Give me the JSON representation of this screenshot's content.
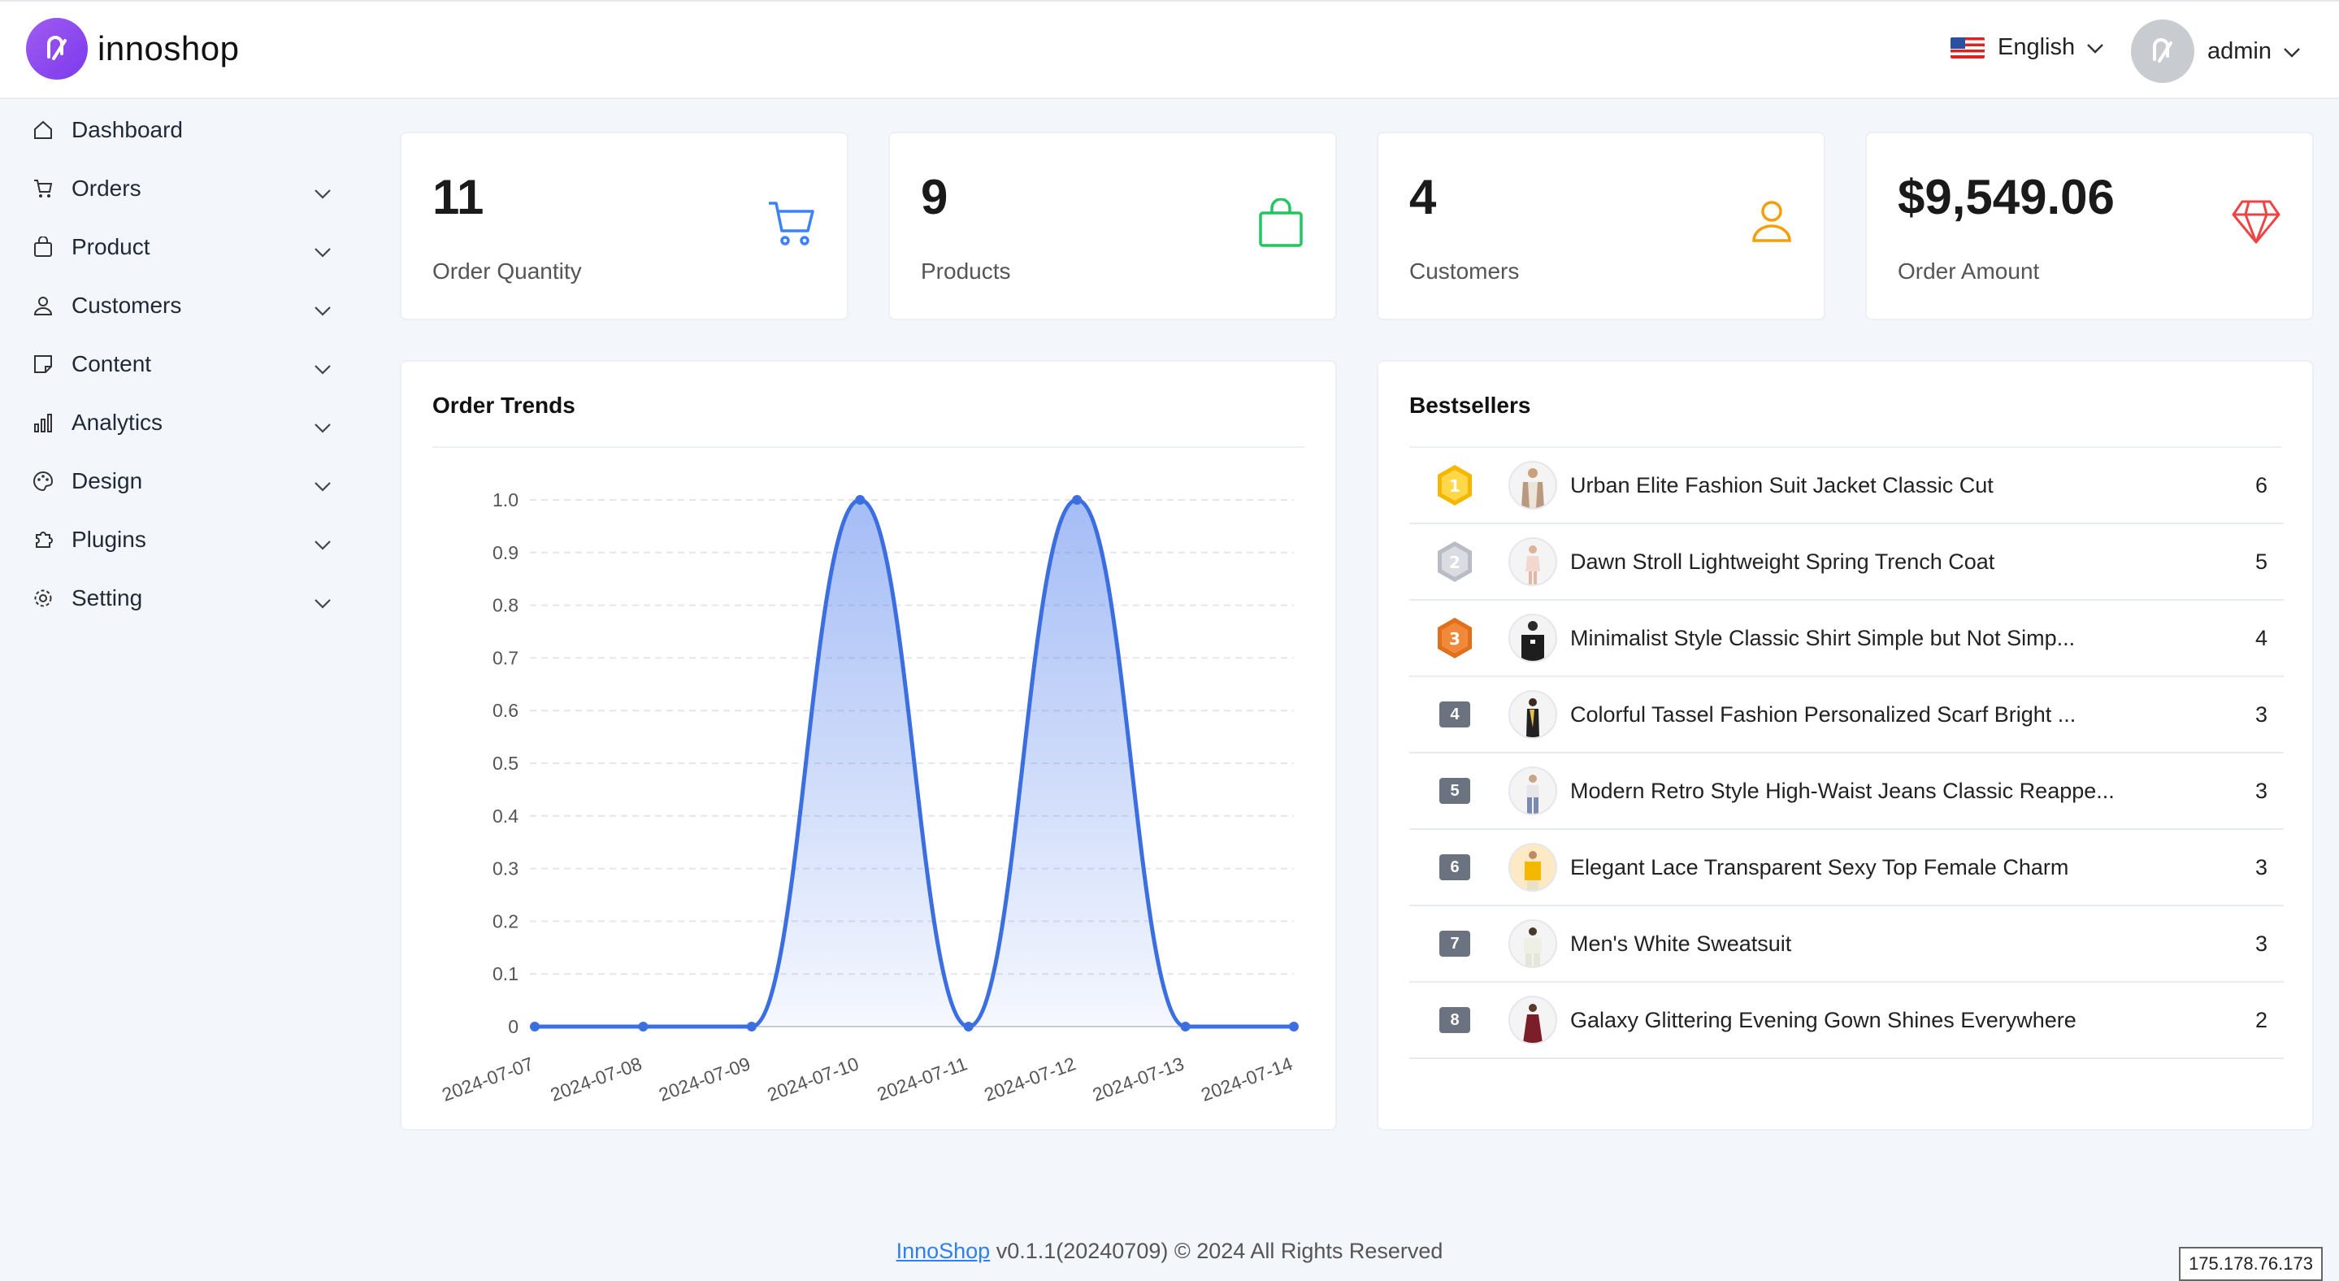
{
  "header": {
    "logo_text": "innoshop",
    "language": "English",
    "user": "admin"
  },
  "sidebar": {
    "items": [
      {
        "label": "Dashboard",
        "icon": "home-icon",
        "expandable": false
      },
      {
        "label": "Orders",
        "icon": "cart-icon",
        "expandable": true
      },
      {
        "label": "Product",
        "icon": "bag-icon",
        "expandable": true
      },
      {
        "label": "Customers",
        "icon": "user-icon",
        "expandable": true
      },
      {
        "label": "Content",
        "icon": "note-icon",
        "expandable": true
      },
      {
        "label": "Analytics",
        "icon": "bar-chart-icon",
        "expandable": true
      },
      {
        "label": "Design",
        "icon": "palette-icon",
        "expandable": true
      },
      {
        "label": "Plugins",
        "icon": "puzzle-icon",
        "expandable": true
      },
      {
        "label": "Setting",
        "icon": "gear-icon",
        "expandable": true
      }
    ]
  },
  "stats": [
    {
      "value": "11",
      "label": "Order Quantity",
      "icon": "cart-icon",
      "color": "#3b82f6"
    },
    {
      "value": "9",
      "label": "Products",
      "icon": "bag-icon",
      "color": "#22c55e"
    },
    {
      "value": "4",
      "label": "Customers",
      "icon": "user-icon",
      "color": "#f59e0b"
    },
    {
      "value": "$9,549.06",
      "label": "Order Amount",
      "icon": "diamond-icon",
      "color": "#ef4444"
    }
  ],
  "order_trends": {
    "title": "Order Trends",
    "chart_data": {
      "type": "area",
      "x": [
        "2024-07-07",
        "2024-07-08",
        "2024-07-09",
        "2024-07-10",
        "2024-07-11",
        "2024-07-12",
        "2024-07-13",
        "2024-07-14"
      ],
      "values": [
        0,
        0,
        0,
        1,
        0,
        1,
        0,
        0
      ],
      "ylim": [
        0,
        1
      ],
      "yticks": [
        "0",
        "0.1",
        "0.2",
        "0.3",
        "0.4",
        "0.5",
        "0.6",
        "0.7",
        "0.8",
        "0.9",
        "1.0"
      ],
      "grid": true,
      "color": "#3b6fe0"
    }
  },
  "bestsellers": {
    "title": "Bestsellers",
    "items": [
      {
        "rank": "1",
        "name": "Urban Elite Fashion Suit Jacket Classic Cut",
        "count": "6",
        "medal": "gold"
      },
      {
        "rank": "2",
        "name": "Dawn Stroll Lightweight Spring Trench Coat",
        "count": "5",
        "medal": "silver"
      },
      {
        "rank": "3",
        "name": "Minimalist Style Classic Shirt Simple but Not Simp...",
        "count": "4",
        "medal": "bronze"
      },
      {
        "rank": "4",
        "name": "Colorful Tassel Fashion Personalized Scarf Bright ...",
        "count": "3",
        "medal": "none"
      },
      {
        "rank": "5",
        "name": "Modern Retro Style High-Waist Jeans Classic Reappe...",
        "count": "3",
        "medal": "none"
      },
      {
        "rank": "6",
        "name": "Elegant Lace Transparent Sexy Top Female Charm",
        "count": "3",
        "medal": "none"
      },
      {
        "rank": "7",
        "name": "Men's White Sweatsuit",
        "count": "3",
        "medal": "none"
      },
      {
        "rank": "8",
        "name": "Galaxy Glittering Evening Gown Shines Everywhere",
        "count": "2",
        "medal": "none"
      }
    ]
  },
  "footer": {
    "link": "InnoShop",
    "text": " v0.1.1(20240709) © 2024 All Rights Reserved"
  },
  "ip_badge": "175.178.76.173"
}
